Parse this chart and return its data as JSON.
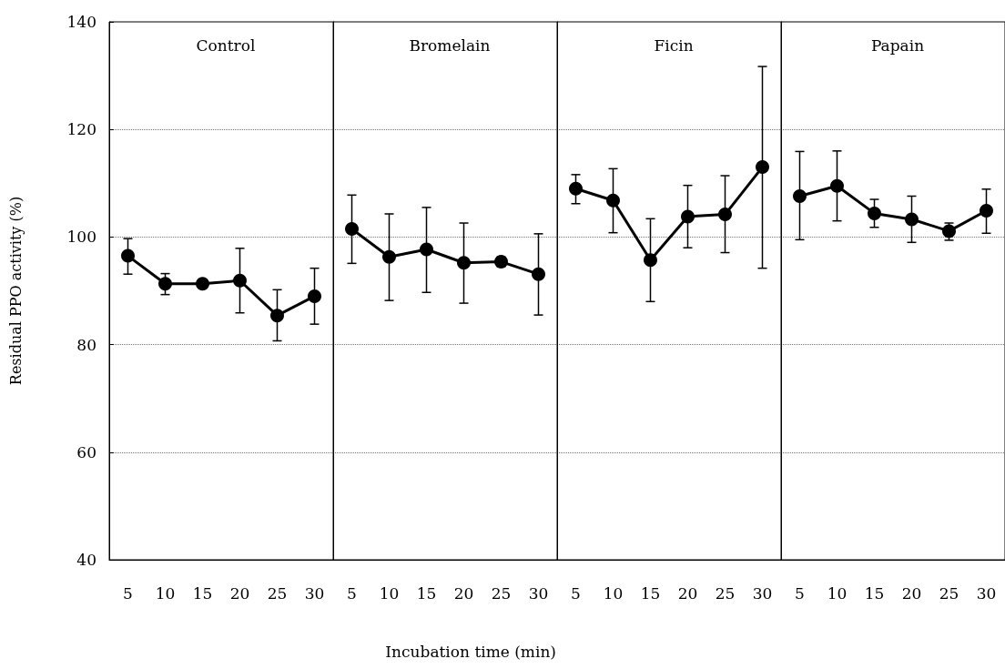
{
  "chart_data": [
    {
      "type": "line",
      "title": "Control",
      "ylabel": "Residual PPO activity (%)",
      "categories": [
        "5",
        "10",
        "15",
        "20",
        "25",
        "30"
      ],
      "ylim": [
        40,
        140
      ],
      "yticks": [
        40,
        60,
        80,
        100,
        120,
        140
      ],
      "grid": "y",
      "marker": "circle",
      "line_style": "solid",
      "series": [
        {
          "color": "#000000",
          "values": [
            96.5,
            91.3,
            91.3,
            91.9,
            85.4,
            89.0
          ],
          "errors": [
            [
              93.1,
              99.7
            ],
            [
              89.3,
              93.2
            ],
            [
              90.5,
              92.1
            ],
            [
              85.9,
              97.9
            ],
            [
              80.7,
              90.2
            ],
            [
              83.8,
              94.2
            ]
          ]
        }
      ]
    },
    {
      "type": "line",
      "title": "Bromelain",
      "xlabel": "Incubation time (min)",
      "categories": [
        "5",
        "10",
        "15",
        "20",
        "25",
        "30"
      ],
      "ylim": [
        40,
        140
      ],
      "yticks": [
        40,
        60,
        80,
        100,
        120,
        140
      ],
      "grid": "y",
      "tick_labels": "x",
      "marker": "circle",
      "line_style": "solid",
      "series": [
        {
          "color": "#000000",
          "values": [
            101.5,
            96.3,
            97.7,
            95.2,
            95.4,
            93.1
          ],
          "errors": [
            [
              95.1,
              107.8
            ],
            [
              88.2,
              104.3
            ],
            [
              89.7,
              105.5
            ],
            [
              87.7,
              102.6
            ],
            [
              94.5,
              96.3
            ],
            [
              85.5,
              100.6
            ]
          ]
        }
      ]
    },
    {
      "type": "line",
      "title": "Ficin",
      "categories": [
        "5",
        "10",
        "15",
        "20",
        "25",
        "30"
      ],
      "ylim": [
        40,
        140
      ],
      "yticks": [
        40,
        60,
        80,
        100,
        120,
        140
      ],
      "grid": "y",
      "tick_labels": "x",
      "marker": "circle",
      "line_style": "solid",
      "series": [
        {
          "color": "#000000",
          "values": [
            109.0,
            106.8,
            95.7,
            103.8,
            104.2,
            113.0
          ],
          "errors": [
            [
              106.2,
              111.6
            ],
            [
              100.8,
              112.7
            ],
            [
              88.0,
              103.4
            ],
            [
              98.0,
              109.6
            ],
            [
              97.1,
              111.4
            ],
            [
              94.2,
              131.7
            ]
          ]
        }
      ]
    },
    {
      "type": "line",
      "title": "Papain",
      "categories": [
        "5",
        "10",
        "15",
        "20",
        "25",
        "30"
      ],
      "ylim": [
        40,
        140
      ],
      "yticks": [
        40,
        60,
        80,
        100,
        120,
        140
      ],
      "grid": "y",
      "tick_labels": "x",
      "marker": "circle",
      "line_style": "solid",
      "series": [
        {
          "color": "#000000",
          "values": [
            107.6,
            109.5,
            104.4,
            103.3,
            101.1,
            104.9
          ],
          "errors": [
            [
              99.5,
              115.9
            ],
            [
              103.0,
              116.0
            ],
            [
              101.8,
              107.0
            ],
            [
              99.0,
              107.6
            ],
            [
              99.4,
              102.6
            ],
            [
              100.7,
              108.9
            ]
          ]
        }
      ]
    }
  ]
}
